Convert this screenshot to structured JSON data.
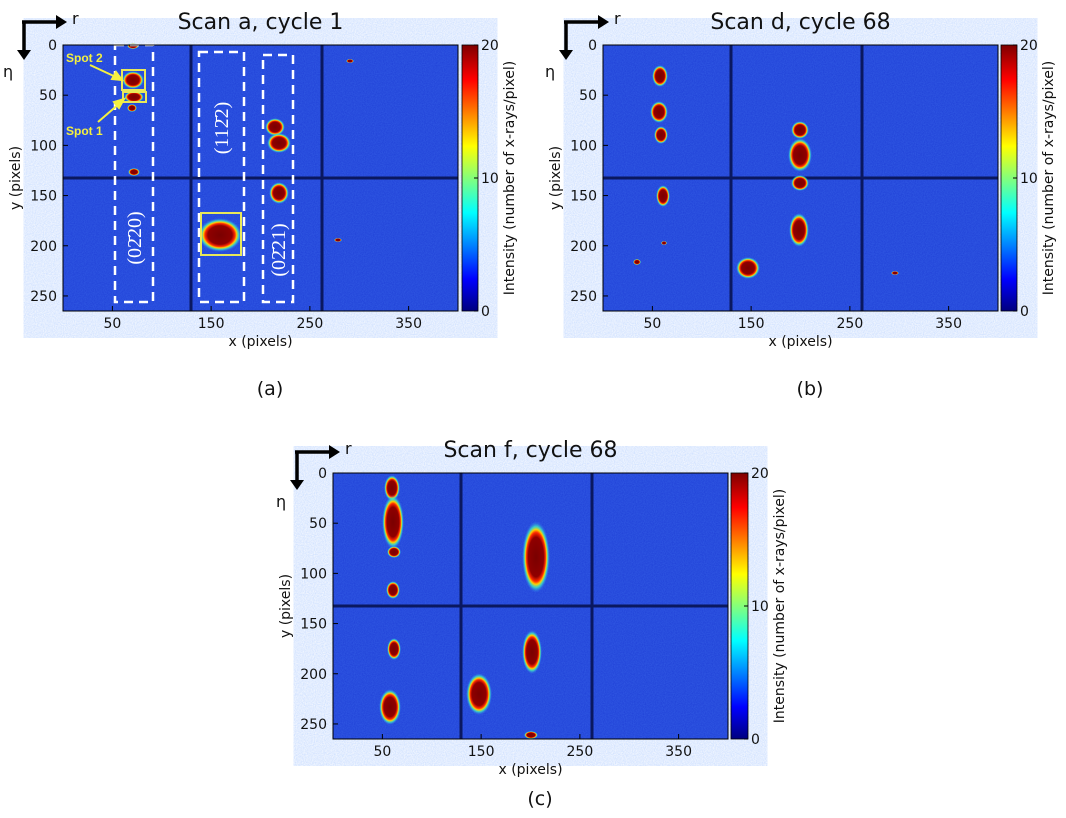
{
  "chart_data": [
    {
      "type": "heatmap",
      "title": "Scan a, cycle 1",
      "xlabel": "x (pixels)",
      "ylabel": "y (pixels)",
      "xlim": [
        0,
        400
      ],
      "xticks": [
        50,
        150,
        250,
        350
      ],
      "ylim": [
        265,
        0
      ],
      "yticks": [
        0,
        50,
        100,
        150,
        200,
        250
      ],
      "colorbar": {
        "label": "Intensity (number of x-rays/pixel)",
        "lim": [
          0,
          20
        ],
        "ticks": [
          0,
          10,
          20
        ]
      },
      "direction_labels": [
        "r",
        "η"
      ],
      "panel_label": "(a)",
      "annotations": [
        "Spot 2",
        "Spot 1",
        "(02̄20)",
        "(112̄2)",
        "(02̄21)"
      ]
    },
    {
      "type": "heatmap",
      "title": "Scan d, cycle 68",
      "xlabel": "x (pixels)",
      "ylabel": "y (pixels)",
      "xlim": [
        0,
        400
      ],
      "xticks": [
        50,
        150,
        250,
        350
      ],
      "ylim": [
        265,
        0
      ],
      "yticks": [
        0,
        50,
        100,
        150,
        200,
        250
      ],
      "colorbar": {
        "label": "Intensity (number of x-rays/pixel)",
        "lim": [
          0,
          20
        ],
        "ticks": [
          0,
          10,
          20
        ]
      },
      "direction_labels": [
        "r",
        "η"
      ],
      "panel_label": "(b)"
    },
    {
      "type": "heatmap",
      "title": "Scan f, cycle 68",
      "xlabel": "x (pixels)",
      "ylabel": "y (pixels)",
      "xlim": [
        0,
        400
      ],
      "xticks": [
        50,
        150,
        250,
        350
      ],
      "ylim": [
        265,
        0
      ],
      "yticks": [
        0,
        50,
        100,
        150,
        200,
        250
      ],
      "colorbar": {
        "label": "Intensity (number of x-rays/pixel)",
        "lim": [
          0,
          20
        ],
        "ticks": [
          0,
          10,
          20
        ]
      },
      "direction_labels": [
        "r",
        "η"
      ],
      "panel_label": "(c)"
    }
  ]
}
